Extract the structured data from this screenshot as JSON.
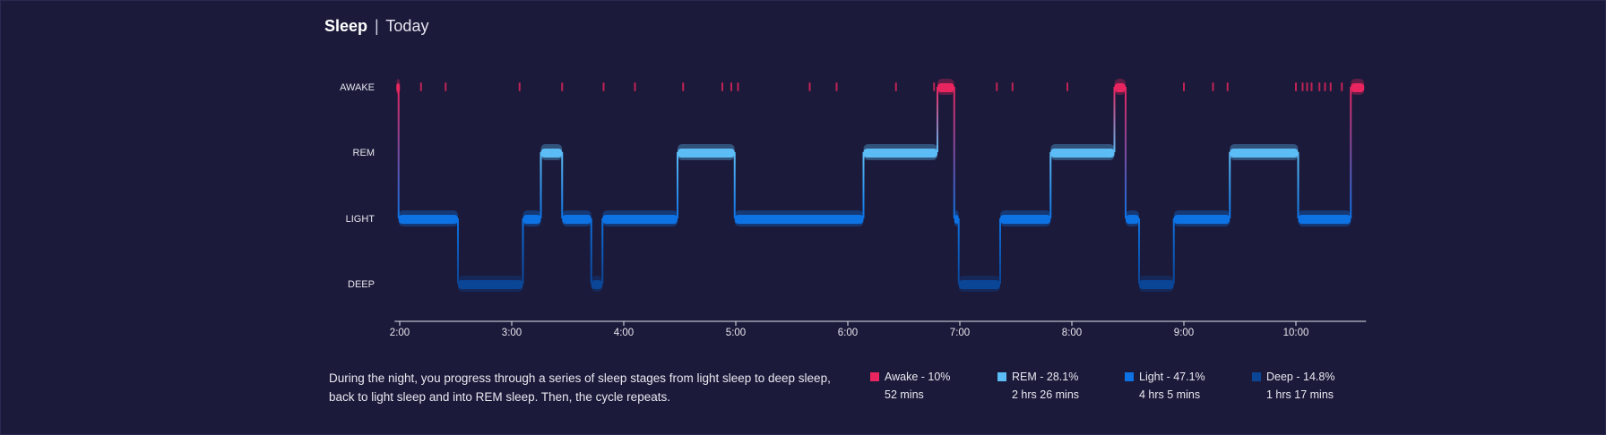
{
  "header": {
    "title": "Sleep",
    "separator": "|",
    "period": "Today"
  },
  "description": "During the night, you progress through a series of sleep stages from light sleep to deep sleep, back to light sleep and into REM sleep. Then, the cycle repeats.",
  "colors": {
    "background": "#1b1a3a",
    "awake": "#e8255e",
    "rem": "#5cbcf5",
    "light": "#0d72e3",
    "deep": "#0b4596",
    "axis": "#e6e6ee"
  },
  "legend": [
    {
      "key": "awake",
      "label": "Awake - 10%",
      "duration": "52 mins"
    },
    {
      "key": "rem",
      "label": "REM - 28.1%",
      "duration": "2 hrs 26 mins"
    },
    {
      "key": "light",
      "label": "Light - 47.1%",
      "duration": "4 hrs 5 mins"
    },
    {
      "key": "deep",
      "label": "Deep - 14.8%",
      "duration": "1 hrs 17 mins"
    }
  ],
  "chart_data": {
    "type": "step",
    "x_unit": "hour of night",
    "x_ticks": [
      2,
      3,
      4,
      5,
      6,
      7,
      8,
      9,
      10
    ],
    "x_tick_labels": [
      "2:00",
      "3:00",
      "4:00",
      "5:00",
      "6:00",
      "7:00",
      "8:00",
      "9:00",
      "10:00"
    ],
    "x_range": [
      1.97,
      10.61
    ],
    "stages": [
      "AWAKE",
      "REM",
      "LIGHT",
      "DEEP"
    ],
    "hypnogram": [
      {
        "stage": "AWAKE",
        "start": 1.97,
        "end": 1.99
      },
      {
        "stage": "LIGHT",
        "start": 1.99,
        "end": 2.52
      },
      {
        "stage": "DEEP",
        "start": 2.52,
        "end": 3.1
      },
      {
        "stage": "LIGHT",
        "start": 3.1,
        "end": 3.26
      },
      {
        "stage": "REM",
        "start": 3.26,
        "end": 3.45
      },
      {
        "stage": "LIGHT",
        "start": 3.45,
        "end": 3.71
      },
      {
        "stage": "DEEP",
        "start": 3.71,
        "end": 3.81
      },
      {
        "stage": "LIGHT",
        "start": 3.81,
        "end": 4.48
      },
      {
        "stage": "REM",
        "start": 4.48,
        "end": 4.99
      },
      {
        "stage": "LIGHT",
        "start": 4.99,
        "end": 6.14
      },
      {
        "stage": "REM",
        "start": 6.14,
        "end": 6.8
      },
      {
        "stage": "AWAKE",
        "start": 6.8,
        "end": 6.95
      },
      {
        "stage": "LIGHT",
        "start": 6.95,
        "end": 6.99
      },
      {
        "stage": "DEEP",
        "start": 6.99,
        "end": 7.36
      },
      {
        "stage": "LIGHT",
        "start": 7.36,
        "end": 7.81
      },
      {
        "stage": "REM",
        "start": 7.81,
        "end": 8.38
      },
      {
        "stage": "AWAKE",
        "start": 8.38,
        "end": 8.48
      },
      {
        "stage": "LIGHT",
        "start": 8.48,
        "end": 8.6
      },
      {
        "stage": "DEEP",
        "start": 8.6,
        "end": 8.91
      },
      {
        "stage": "LIGHT",
        "start": 8.91,
        "end": 9.41
      },
      {
        "stage": "REM",
        "start": 9.41,
        "end": 10.02
      },
      {
        "stage": "LIGHT",
        "start": 10.02,
        "end": 10.49
      },
      {
        "stage": "AWAKE",
        "start": 10.49,
        "end": 10.61
      }
    ],
    "brief_awakenings": [
      2.19,
      2.41,
      3.07,
      3.45,
      3.82,
      4.1,
      4.53,
      4.88,
      4.96,
      5.02,
      5.66,
      5.9,
      6.43,
      6.77,
      7.33,
      7.47,
      7.96,
      9.0,
      9.26,
      9.39,
      10.0,
      10.06,
      10.1,
      10.14,
      10.21,
      10.26,
      10.31,
      10.41
    ]
  }
}
